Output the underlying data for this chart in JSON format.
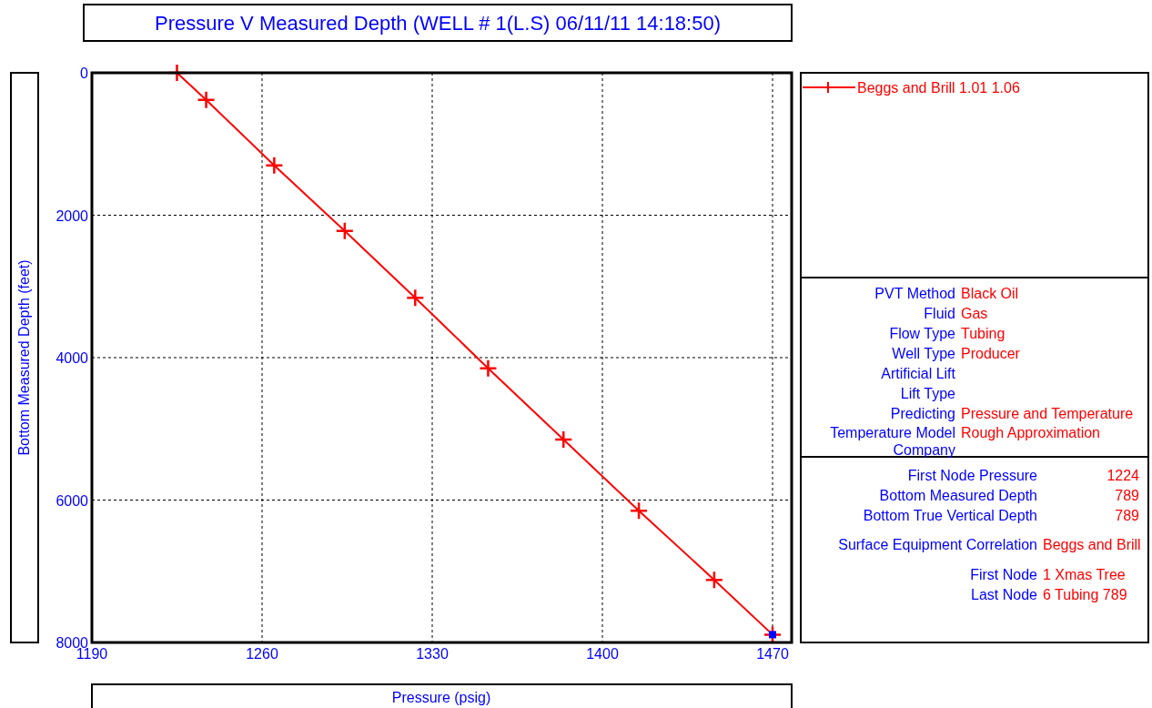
{
  "chart_data": {
    "type": "line",
    "title": "Pressure V Measured Depth (WELL # 1(L.S) 06/11/11 14:18:50)",
    "xlabel": "Pressure  (psig)",
    "ylabel": "Bottom Measured Depth  (feet)",
    "xlim": [
      1190,
      1470
    ],
    "xticks": [
      1190,
      1260,
      1330,
      1400,
      1470
    ],
    "ylim": [
      8000,
      0
    ],
    "yticks": [
      0,
      2000,
      4000,
      6000,
      8000
    ],
    "grid": true,
    "legend": "right",
    "line_style": "solid",
    "series": [
      {
        "name": "Beggs and Brill 1.01 1.06",
        "color": "#ff0000",
        "marker": "cross",
        "x": [
          1225,
          1237,
          1265,
          1294,
          1323,
          1353,
          1384,
          1415,
          1446,
          1470
        ],
        "values": [
          0,
          380,
          1300,
          2220,
          3160,
          4150,
          5150,
          6150,
          7120,
          7890
        ]
      },
      {
        "type": "scatter",
        "color": "#0000ff",
        "marker": "square",
        "x": [
          1470
        ],
        "values": [
          7890
        ]
      }
    ],
    "annotations": [
      "PVT Method",
      "Black Oil",
      "Fluid",
      "Gas",
      "Flow Type",
      "Tubing",
      "Well Type",
      "Producer",
      "Artificial Lift",
      "Lift Type",
      "Predicting",
      "Pressure and Temperature",
      "Temperature Model",
      "Rough Approximation",
      "Company",
      "First Node Pressure",
      "1224",
      "Bottom Measured Depth",
      "789",
      "Bottom True Vertical Depth",
      "789",
      "Surface Equipment Correlation",
      "Beggs and Brill",
      "First Node",
      "1 Xmas Tree",
      "Last Node",
      "6 Tubing 789"
    ]
  }
}
